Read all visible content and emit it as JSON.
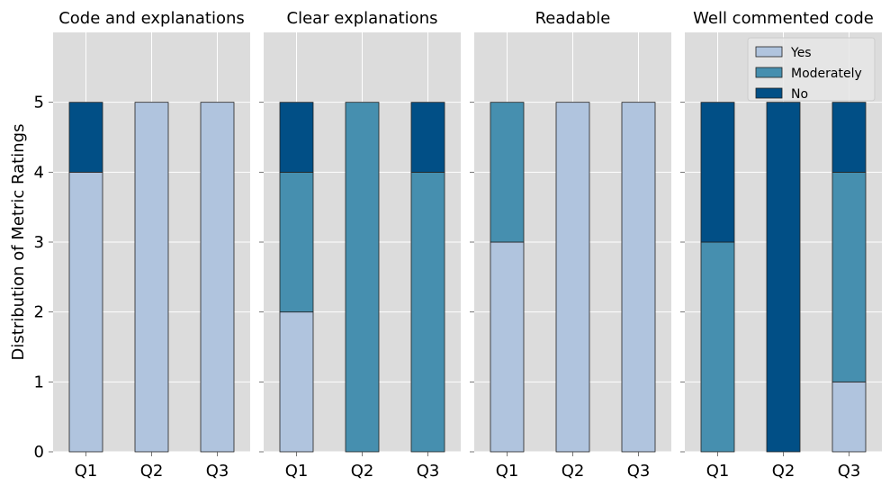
{
  "chart_data": [
    {
      "type": "bar",
      "stacked": true,
      "title": "Code and explanations",
      "categories": [
        "Q1",
        "Q2",
        "Q3"
      ],
      "series": [
        {
          "name": "Yes",
          "values": [
            4,
            5,
            5
          ]
        },
        {
          "name": "Moderately",
          "values": [
            0,
            0,
            0
          ]
        },
        {
          "name": "No",
          "values": [
            1,
            0,
            0
          ]
        }
      ],
      "ylabel": "Distribution of Metric Ratings",
      "ylim": [
        0,
        6
      ],
      "yticks": [
        0,
        1,
        2,
        3,
        4,
        5
      ],
      "grid": true
    },
    {
      "type": "bar",
      "stacked": true,
      "title": "Clear explanations",
      "categories": [
        "Q1",
        "Q2",
        "Q3"
      ],
      "series": [
        {
          "name": "Yes",
          "values": [
            2,
            0,
            0
          ]
        },
        {
          "name": "Moderately",
          "values": [
            2,
            5,
            4
          ]
        },
        {
          "name": "No",
          "values": [
            1,
            0,
            1
          ]
        }
      ],
      "ylim": [
        0,
        6
      ],
      "grid": true
    },
    {
      "type": "bar",
      "stacked": true,
      "title": "Readable",
      "categories": [
        "Q1",
        "Q2",
        "Q3"
      ],
      "series": [
        {
          "name": "Yes",
          "values": [
            3,
            5,
            5
          ]
        },
        {
          "name": "Moderately",
          "values": [
            2,
            0,
            0
          ]
        },
        {
          "name": "No",
          "values": [
            0,
            0,
            0
          ]
        }
      ],
      "ylim": [
        0,
        6
      ],
      "grid": true
    },
    {
      "type": "bar",
      "stacked": true,
      "title": "Well commented code",
      "categories": [
        "Q1",
        "Q2",
        "Q3"
      ],
      "series": [
        {
          "name": "Yes",
          "values": [
            0,
            0,
            1
          ]
        },
        {
          "name": "Moderately",
          "values": [
            3,
            0,
            3
          ]
        },
        {
          "name": "No",
          "values": [
            2,
            5,
            1
          ]
        }
      ],
      "ylim": [
        0,
        6
      ],
      "grid": true,
      "legend": {
        "placement": "top-right",
        "entries": [
          "Yes",
          "Moderately",
          "No"
        ]
      }
    }
  ],
  "colors": {
    "Yes": "#b0c4de",
    "Moderately": "#468faf",
    "No": "#014f86",
    "panel_background": "#dcdcdc",
    "grid": "#ffffff",
    "bar_edge": "#222222"
  }
}
